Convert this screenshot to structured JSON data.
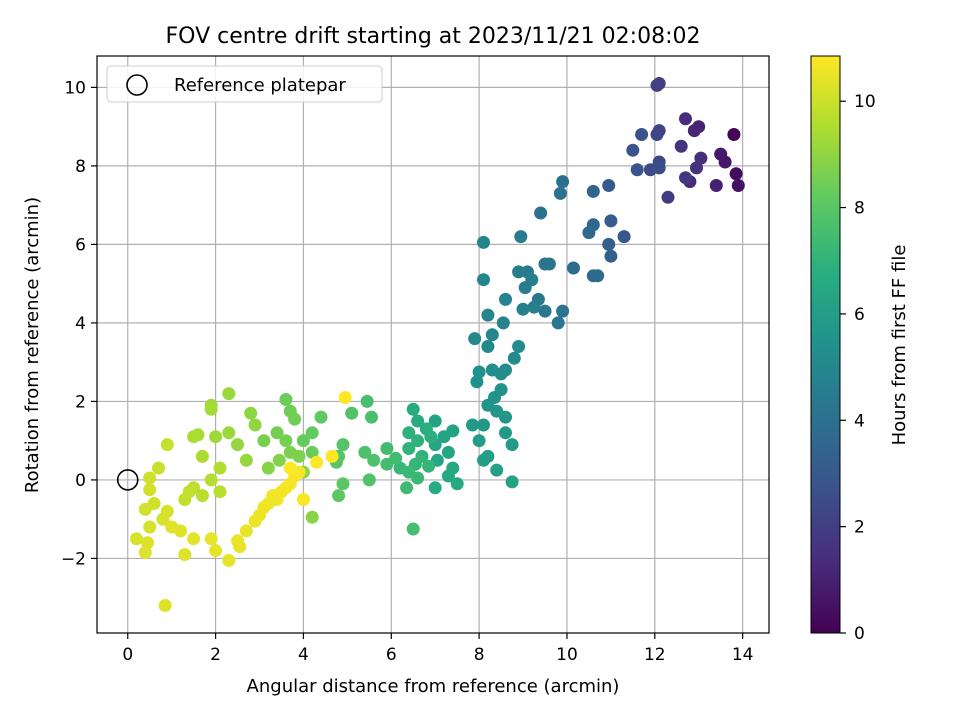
{
  "chart_data": {
    "type": "scatter",
    "title": "FOV centre drift starting at 2023/11/21 02:08:02",
    "xlabel": "Angular distance from reference (arcmin)",
    "ylabel": "Rotation from reference (arcmin)",
    "xlim": [
      -0.7,
      14.6
    ],
    "ylim": [
      -3.9,
      10.8
    ],
    "xticks": [
      0,
      2,
      4,
      6,
      8,
      10,
      12,
      14
    ],
    "yticks": [
      -2,
      0,
      2,
      4,
      6,
      8,
      10
    ],
    "xtick_labels": [
      "0",
      "2",
      "4",
      "6",
      "8",
      "10",
      "12",
      "14"
    ],
    "ytick_labels": [
      "−2",
      "0",
      "2",
      "4",
      "6",
      "8",
      "10"
    ],
    "grid": true,
    "legend": {
      "position": "top-left",
      "entries": [
        {
          "label": "Reference platepar",
          "marker": "open-circle"
        }
      ]
    },
    "reference_point": {
      "x": 0,
      "y": 0
    },
    "colorbar": {
      "label": "Hours from first FF file",
      "range": [
        0,
        10.85
      ],
      "ticks": [
        0,
        2,
        4,
        6,
        8,
        10
      ],
      "tick_labels": [
        "0",
        "2",
        "4",
        "6",
        "8",
        "10"
      ],
      "colormap": "viridis"
    },
    "series": [
      {
        "points": [
          [
            13.8,
            8.8,
            0.1
          ],
          [
            13.85,
            7.8,
            0.3
          ],
          [
            13.9,
            7.5,
            0.5
          ],
          [
            13.6,
            8.1,
            0.7
          ],
          [
            13.5,
            8.3,
            0.8
          ],
          [
            13.4,
            7.5,
            1.0
          ],
          [
            13.0,
            9.0,
            1.1
          ],
          [
            12.9,
            8.9,
            1.2
          ],
          [
            12.8,
            7.6,
            1.3
          ],
          [
            12.7,
            9.2,
            1.4
          ],
          [
            13.05,
            8.2,
            1.5
          ],
          [
            12.95,
            7.95,
            1.6
          ],
          [
            12.6,
            8.5,
            1.7
          ],
          [
            12.7,
            7.7,
            1.8
          ],
          [
            12.3,
            7.2,
            1.9
          ],
          [
            12.1,
            10.1,
            2.0
          ],
          [
            12.05,
            10.05,
            2.1
          ],
          [
            12.1,
            8.9,
            2.2
          ],
          [
            12.05,
            8.8,
            2.3
          ],
          [
            12.1,
            8.1,
            2.4
          ],
          [
            11.9,
            7.9,
            2.5
          ],
          [
            12.1,
            7.95,
            2.6
          ],
          [
            11.7,
            8.8,
            2.7
          ],
          [
            11.6,
            7.9,
            2.8
          ],
          [
            11.5,
            8.4,
            2.9
          ],
          [
            11.3,
            6.2,
            3.0
          ],
          [
            10.95,
            7.5,
            3.1
          ],
          [
            11.0,
            6.6,
            3.2
          ],
          [
            10.95,
            6.0,
            3.3
          ],
          [
            11.0,
            5.7,
            3.4
          ],
          [
            10.6,
            7.35,
            3.5
          ],
          [
            10.6,
            6.5,
            3.6
          ],
          [
            10.5,
            6.3,
            3.7
          ],
          [
            10.6,
            5.2,
            3.8
          ],
          [
            10.7,
            5.2,
            3.85
          ],
          [
            10.15,
            5.4,
            3.9
          ],
          [
            9.9,
            7.6,
            4.0
          ],
          [
            9.85,
            7.3,
            4.05
          ],
          [
            9.4,
            6.8,
            4.1
          ],
          [
            9.5,
            5.5,
            4.15
          ],
          [
            9.6,
            5.5,
            4.2
          ],
          [
            9.9,
            4.3,
            4.25
          ],
          [
            9.8,
            4.0,
            4.3
          ],
          [
            9.5,
            4.3,
            4.35
          ],
          [
            9.35,
            4.6,
            4.4
          ],
          [
            9.1,
            5.3,
            4.45
          ],
          [
            8.95,
            6.2,
            4.5
          ],
          [
            8.9,
            5.3,
            4.55
          ],
          [
            9.05,
            4.9,
            4.6
          ],
          [
            9.2,
            5.1,
            4.65
          ],
          [
            9.25,
            4.4,
            4.7
          ],
          [
            9.0,
            4.35,
            4.75
          ],
          [
            8.6,
            4.6,
            4.8
          ],
          [
            8.55,
            4.0,
            4.85
          ],
          [
            8.2,
            4.2,
            4.9
          ],
          [
            8.1,
            6.05,
            4.95
          ],
          [
            8.1,
            5.1,
            5.0
          ],
          [
            8.3,
            3.7,
            5.05
          ],
          [
            7.9,
            3.6,
            5.1
          ],
          [
            8.2,
            3.4,
            5.15
          ],
          [
            8.9,
            3.4,
            5.2
          ],
          [
            8.8,
            3.1,
            5.25
          ],
          [
            8.6,
            2.8,
            5.3
          ],
          [
            8.5,
            2.7,
            5.35
          ],
          [
            8.3,
            2.8,
            5.4
          ],
          [
            8.0,
            2.75,
            5.45
          ],
          [
            7.95,
            2.5,
            5.5
          ],
          [
            8.5,
            2.3,
            5.55
          ],
          [
            8.35,
            2.1,
            5.6
          ],
          [
            8.2,
            1.9,
            5.65
          ],
          [
            8.4,
            1.75,
            5.7
          ],
          [
            8.6,
            1.6,
            5.75
          ],
          [
            8.1,
            1.4,
            5.8
          ],
          [
            7.85,
            1.4,
            5.85
          ],
          [
            8.6,
            1.2,
            5.9
          ],
          [
            8.75,
            0.9,
            5.95
          ],
          [
            8.0,
            1.0,
            6.0
          ],
          [
            8.2,
            0.6,
            6.05
          ],
          [
            8.1,
            0.5,
            6.1
          ],
          [
            8.4,
            0.25,
            6.15
          ],
          [
            8.75,
            -0.05,
            6.2
          ],
          [
            7.4,
            1.25,
            6.25
          ],
          [
            7.0,
            1.5,
            6.3
          ],
          [
            7.2,
            1.1,
            6.35
          ],
          [
            7.0,
            0.9,
            6.4
          ],
          [
            7.3,
            0.7,
            6.45
          ],
          [
            7.05,
            0.5,
            6.5
          ],
          [
            7.4,
            0.3,
            6.55
          ],
          [
            7.3,
            0.1,
            6.6
          ],
          [
            7.5,
            -0.1,
            6.65
          ],
          [
            7.0,
            -0.2,
            6.7
          ],
          [
            6.5,
            1.8,
            6.75
          ],
          [
            6.6,
            1.5,
            6.8
          ],
          [
            6.8,
            1.3,
            6.85
          ],
          [
            6.9,
            1.1,
            6.9
          ],
          [
            6.4,
            1.2,
            6.95
          ],
          [
            6.6,
            1.0,
            7.0
          ],
          [
            6.4,
            0.8,
            7.05
          ],
          [
            6.7,
            0.6,
            7.1
          ],
          [
            6.55,
            0.4,
            7.15
          ],
          [
            6.85,
            0.35,
            7.2
          ],
          [
            6.2,
            0.3,
            7.25
          ],
          [
            6.4,
            0.2,
            7.3
          ],
          [
            6.6,
            0.05,
            7.35
          ],
          [
            6.35,
            -0.2,
            7.4
          ],
          [
            6.1,
            0.55,
            7.45
          ],
          [
            5.9,
            0.8,
            7.5
          ],
          [
            5.9,
            0.4,
            7.55
          ],
          [
            6.5,
            -1.25,
            7.6
          ],
          [
            5.45,
            2.0,
            7.65
          ],
          [
            5.55,
            1.6,
            7.7
          ],
          [
            5.4,
            0.7,
            7.75
          ],
          [
            5.6,
            0.5,
            7.8
          ],
          [
            5.5,
            0.0,
            7.85
          ],
          [
            5.1,
            1.7,
            7.9
          ],
          [
            4.9,
            0.9,
            7.95
          ],
          [
            4.8,
            0.6,
            8.0
          ],
          [
            4.75,
            0.45,
            8.05
          ],
          [
            4.9,
            -0.1,
            8.1
          ],
          [
            4.8,
            -0.4,
            8.15
          ],
          [
            4.4,
            1.6,
            8.2
          ],
          [
            4.2,
            1.2,
            8.25
          ],
          [
            4.0,
            1.0,
            8.3
          ],
          [
            4.2,
            0.7,
            8.35
          ],
          [
            3.6,
            2.05,
            8.4
          ],
          [
            3.7,
            1.75,
            8.45
          ],
          [
            3.8,
            1.55,
            8.5
          ],
          [
            3.4,
            1.2,
            8.55
          ],
          [
            3.6,
            1.0,
            8.6
          ],
          [
            3.1,
            1.0,
            8.65
          ],
          [
            3.7,
            0.7,
            8.7
          ],
          [
            3.9,
            0.6,
            8.75
          ],
          [
            3.45,
            0.5,
            8.8
          ],
          [
            3.2,
            0.3,
            8.85
          ],
          [
            4.2,
            -0.95,
            8.9
          ],
          [
            4.0,
            0.2,
            8.95
          ],
          [
            2.8,
            1.7,
            9.0
          ],
          [
            2.9,
            1.4,
            9.05
          ],
          [
            2.5,
            0.9,
            9.1
          ],
          [
            2.7,
            0.5,
            9.15
          ],
          [
            2.3,
            2.2,
            9.2
          ],
          [
            2.3,
            1.2,
            9.25
          ],
          [
            2.0,
            1.1,
            9.3
          ],
          [
            1.9,
            1.9,
            9.35
          ],
          [
            1.9,
            1.8,
            9.4
          ],
          [
            1.6,
            1.15,
            9.45
          ],
          [
            1.5,
            1.1,
            9.5
          ],
          [
            1.7,
            0.6,
            9.55
          ],
          [
            2.1,
            0.3,
            9.6
          ],
          [
            1.9,
            0.0,
            9.65
          ],
          [
            2.1,
            -0.3,
            9.7
          ],
          [
            1.7,
            -0.4,
            9.75
          ],
          [
            1.5,
            -0.2,
            9.8
          ],
          [
            1.4,
            -0.3,
            9.85
          ],
          [
            1.3,
            -0.5,
            9.9
          ],
          [
            0.9,
            0.9,
            9.95
          ],
          [
            0.7,
            0.3,
            10.0
          ],
          [
            0.5,
            0.05,
            10.05
          ],
          [
            0.5,
            -0.25,
            10.1
          ],
          [
            0.6,
            -0.6,
            10.12
          ],
          [
            0.4,
            -0.75,
            10.15
          ],
          [
            0.9,
            -0.8,
            10.18
          ],
          [
            0.8,
            -1.0,
            10.2
          ],
          [
            0.5,
            -1.2,
            10.22
          ],
          [
            0.2,
            -1.5,
            10.25
          ],
          [
            0.45,
            -1.6,
            10.28
          ],
          [
            0.4,
            -1.85,
            10.3
          ],
          [
            1.3,
            -1.9,
            10.32
          ],
          [
            0.85,
            -3.2,
            10.35
          ],
          [
            1.2,
            -1.3,
            10.38
          ],
          [
            1.0,
            -1.2,
            10.4
          ],
          [
            1.5,
            -1.5,
            10.42
          ],
          [
            1.9,
            -1.5,
            10.44
          ],
          [
            2.0,
            -1.8,
            10.46
          ],
          [
            2.3,
            -2.05,
            10.48
          ],
          [
            2.5,
            -1.55,
            10.5
          ],
          [
            2.55,
            -1.7,
            10.52
          ],
          [
            2.7,
            -1.3,
            10.54
          ],
          [
            2.9,
            -1.05,
            10.56
          ],
          [
            3.0,
            -0.9,
            10.58
          ],
          [
            3.1,
            -0.7,
            10.6
          ],
          [
            3.2,
            -0.6,
            10.62
          ],
          [
            3.3,
            -0.4,
            10.64
          ],
          [
            3.4,
            -0.5,
            10.66
          ],
          [
            3.5,
            -0.3,
            10.68
          ],
          [
            3.6,
            -0.2,
            10.7
          ],
          [
            3.7,
            -0.1,
            10.72
          ],
          [
            3.8,
            0.1,
            10.74
          ],
          [
            3.9,
            0.2,
            10.76
          ],
          [
            4.0,
            -0.5,
            10.78
          ],
          [
            3.7,
            0.3,
            10.8
          ],
          [
            4.3,
            0.45,
            10.82
          ],
          [
            4.65,
            0.6,
            10.84
          ],
          [
            4.95,
            2.1,
            10.85
          ]
        ]
      }
    ]
  }
}
